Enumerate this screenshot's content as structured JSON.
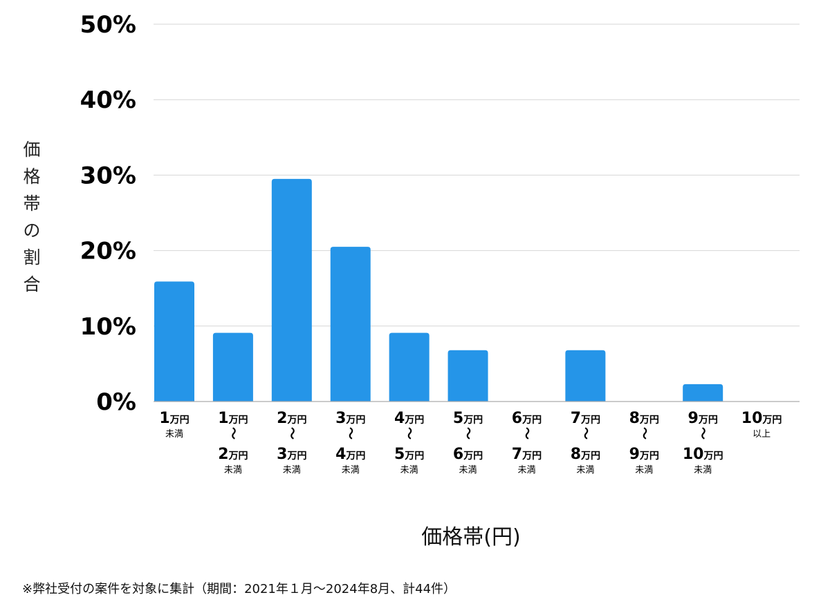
{
  "chart_data": {
    "type": "bar",
    "ylabel": "価格帯の割合",
    "xlabel": "価格帯(円)",
    "ylim": [
      0,
      50
    ],
    "yticks": [
      "0%",
      "10%",
      "20%",
      "30%",
      "40%",
      "50%"
    ],
    "ytick_values": [
      0,
      10,
      20,
      30,
      40,
      50
    ],
    "grid": true,
    "bar_color": "#2595e8",
    "categories": [
      {
        "lines": [
          {
            "num": "1",
            "unit": "万円"
          },
          {
            "small": "未満"
          }
        ]
      },
      {
        "lines": [
          {
            "num": "1",
            "unit": "万円"
          },
          {
            "tilde": "〜"
          },
          {
            "num": "2",
            "unit": "万円"
          },
          {
            "small": "未満"
          }
        ]
      },
      {
        "lines": [
          {
            "num": "2",
            "unit": "万円"
          },
          {
            "tilde": "〜"
          },
          {
            "num": "3",
            "unit": "万円"
          },
          {
            "small": "未満"
          }
        ]
      },
      {
        "lines": [
          {
            "num": "3",
            "unit": "万円"
          },
          {
            "tilde": "〜"
          },
          {
            "num": "4",
            "unit": "万円"
          },
          {
            "small": "未満"
          }
        ]
      },
      {
        "lines": [
          {
            "num": "4",
            "unit": "万円"
          },
          {
            "tilde": "〜"
          },
          {
            "num": "5",
            "unit": "万円"
          },
          {
            "small": "未満"
          }
        ]
      },
      {
        "lines": [
          {
            "num": "5",
            "unit": "万円"
          },
          {
            "tilde": "〜"
          },
          {
            "num": "6",
            "unit": "万円"
          },
          {
            "small": "未満"
          }
        ]
      },
      {
        "lines": [
          {
            "num": "6",
            "unit": "万円"
          },
          {
            "tilde": "〜"
          },
          {
            "num": "7",
            "unit": "万円"
          },
          {
            "small": "未満"
          }
        ]
      },
      {
        "lines": [
          {
            "num": "7",
            "unit": "万円"
          },
          {
            "tilde": "〜"
          },
          {
            "num": "8",
            "unit": "万円"
          },
          {
            "small": "未満"
          }
        ]
      },
      {
        "lines": [
          {
            "num": "8",
            "unit": "万円"
          },
          {
            "tilde": "〜"
          },
          {
            "num": "9",
            "unit": "万円"
          },
          {
            "small": "未満"
          }
        ]
      },
      {
        "lines": [
          {
            "num": "9",
            "unit": "万円"
          },
          {
            "tilde": "〜"
          },
          {
            "num": "10",
            "unit": "万円"
          },
          {
            "small": "未満"
          }
        ]
      },
      {
        "lines": [
          {
            "num": "10",
            "unit": "万円"
          },
          {
            "small": "以上"
          }
        ]
      }
    ],
    "values": [
      15.9,
      9.1,
      29.5,
      20.5,
      9.1,
      6.8,
      0,
      6.8,
      0,
      2.3,
      0
    ]
  },
  "footnote": "※弊社受付の案件を対象に集計（期間：2021年１月〜2024年8月、計44件）"
}
